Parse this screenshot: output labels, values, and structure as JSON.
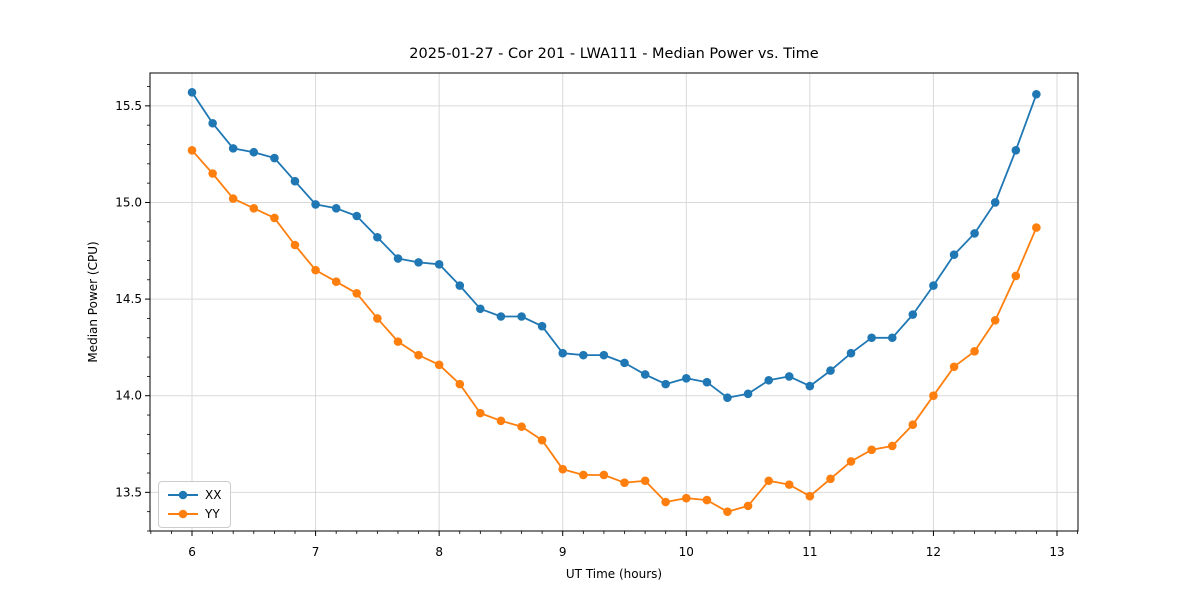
{
  "figure": {
    "background": "#ffffff",
    "axis_color": "#000000",
    "grid_color": "#d9d9d9"
  },
  "chart_data": {
    "type": "line",
    "title": "2025-01-27 - Cor 201 - LWA111 - Median Power vs. Time",
    "xlabel": "UT Time (hours)",
    "ylabel": "Median Power (CPU)",
    "grid": true,
    "legend_position": "lower left",
    "marker": "circle",
    "xlim": [
      5.66,
      13.17
    ],
    "ylim": [
      13.3,
      15.67
    ],
    "x_ticks": [
      6,
      7,
      8,
      9,
      10,
      11,
      12,
      13
    ],
    "x_tick_labels": [
      "6",
      "7",
      "8",
      "9",
      "10",
      "11",
      "12",
      "13"
    ],
    "y_ticks": [
      13.5,
      14.0,
      14.5,
      15.0,
      15.5
    ],
    "y_tick_labels": [
      "13.5",
      "14.0",
      "14.5",
      "15.0",
      "15.5"
    ],
    "x_minor_divisions_per_unit": 6,
    "y_minor_divisions_per_unit": 10,
    "x": [
      6.0,
      6.167,
      6.333,
      6.5,
      6.667,
      6.833,
      7.0,
      7.167,
      7.333,
      7.5,
      7.667,
      7.833,
      8.0,
      8.167,
      8.333,
      8.5,
      8.667,
      8.833,
      9.0,
      9.167,
      9.333,
      9.5,
      9.667,
      9.833,
      10.0,
      10.167,
      10.333,
      10.5,
      10.667,
      10.833,
      11.0,
      11.167,
      11.333,
      11.5,
      11.667,
      11.833,
      12.0,
      12.167,
      12.333,
      12.5,
      12.667,
      12.833
    ],
    "series": [
      {
        "name": "XX",
        "color": "#1f77b4",
        "values": [
          15.57,
          15.41,
          15.28,
          15.26,
          15.23,
          15.11,
          14.99,
          14.97,
          14.93,
          14.82,
          14.71,
          14.69,
          14.68,
          14.57,
          14.45,
          14.41,
          14.41,
          14.36,
          14.22,
          14.21,
          14.21,
          14.17,
          14.11,
          14.06,
          14.09,
          14.07,
          13.99,
          14.01,
          14.08,
          14.1,
          14.05,
          14.13,
          14.22,
          14.3,
          14.3,
          14.42,
          14.57,
          14.73,
          14.84,
          15.0,
          15.27,
          15.56
        ]
      },
      {
        "name": "YY",
        "color": "#ff7f0e",
        "values": [
          15.27,
          15.15,
          15.02,
          14.97,
          14.92,
          14.78,
          14.65,
          14.59,
          14.53,
          14.4,
          14.28,
          14.21,
          14.16,
          14.06,
          13.91,
          13.87,
          13.84,
          13.77,
          13.62,
          13.59,
          13.59,
          13.55,
          13.56,
          13.45,
          13.47,
          13.46,
          13.4,
          13.43,
          13.56,
          13.54,
          13.48,
          13.57,
          13.66,
          13.72,
          13.74,
          13.85,
          14.0,
          14.15,
          14.23,
          14.39,
          14.62,
          14.87
        ]
      }
    ],
    "legend": {
      "items": [
        "XX",
        "YY"
      ]
    }
  }
}
